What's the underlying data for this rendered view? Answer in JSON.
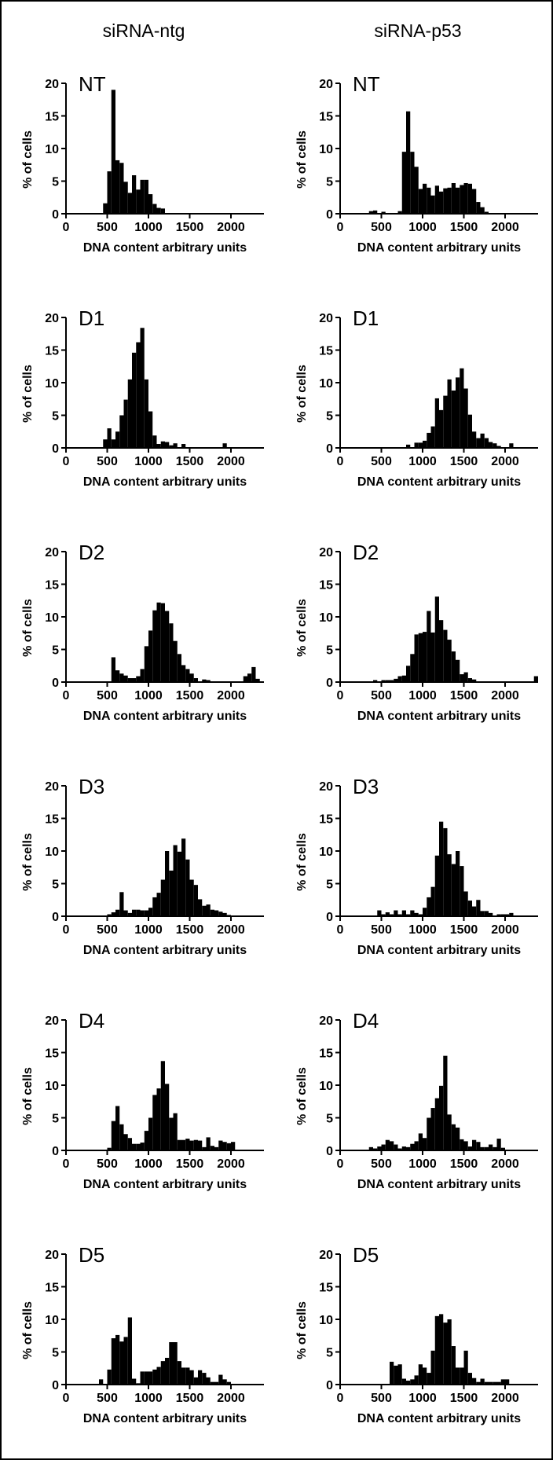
{
  "figure": {
    "column_titles": [
      "siRNA-ntg",
      "siRNA-p53"
    ],
    "row_labels": [
      "NT",
      "D1",
      "D2",
      "D3",
      "D4",
      "D5"
    ]
  },
  "axes": {
    "xlabel": "DNA content arbitrary units",
    "ylabel": "% of cells",
    "xlim": [
      0,
      2400
    ],
    "ylim": [
      0,
      20
    ],
    "xticks": [
      0,
      500,
      1000,
      1500,
      2000
    ],
    "yticks": [
      0,
      5,
      10,
      15,
      20
    ]
  },
  "chart_data": [
    {
      "type": "bar",
      "panel": "NT",
      "condition": "siRNA-ntg",
      "bin_width": 50,
      "bins": [
        [
          450,
          1.6
        ],
        [
          500,
          6.5
        ],
        [
          550,
          19.0
        ],
        [
          600,
          8.2
        ],
        [
          650,
          7.8
        ],
        [
          700,
          4.9
        ],
        [
          750,
          3.2
        ],
        [
          800,
          5.9
        ],
        [
          850,
          3.7
        ],
        [
          900,
          5.2
        ],
        [
          950,
          5.2
        ],
        [
          1000,
          3.0
        ],
        [
          1050,
          1.5
        ],
        [
          1100,
          0.9
        ],
        [
          1150,
          0.8
        ]
      ]
    },
    {
      "type": "bar",
      "panel": "NT",
      "condition": "siRNA-p53",
      "bin_width": 50,
      "bins": [
        [
          350,
          0.4
        ],
        [
          400,
          0.5
        ],
        [
          500,
          0.3
        ],
        [
          700,
          0.4
        ],
        [
          750,
          9.5
        ],
        [
          800,
          15.7
        ],
        [
          850,
          9.5
        ],
        [
          900,
          7.2
        ],
        [
          950,
          3.8
        ],
        [
          1000,
          4.6
        ],
        [
          1050,
          4.0
        ],
        [
          1100,
          2.8
        ],
        [
          1150,
          4.3
        ],
        [
          1200,
          3.4
        ],
        [
          1250,
          3.9
        ],
        [
          1300,
          4.0
        ],
        [
          1350,
          4.7
        ],
        [
          1400,
          4.0
        ],
        [
          1450,
          4.4
        ],
        [
          1500,
          4.7
        ],
        [
          1550,
          4.6
        ],
        [
          1600,
          3.8
        ],
        [
          1650,
          1.8
        ],
        [
          1700,
          1.0
        ],
        [
          1750,
          0.3
        ]
      ]
    },
    {
      "type": "bar",
      "panel": "D1",
      "condition": "siRNA-ntg",
      "bin_width": 50,
      "bins": [
        [
          450,
          1.3
        ],
        [
          500,
          3.0
        ],
        [
          550,
          1.3
        ],
        [
          600,
          2.5
        ],
        [
          650,
          5.0
        ],
        [
          700,
          7.4
        ],
        [
          750,
          10.5
        ],
        [
          800,
          14.6
        ],
        [
          850,
          16.2
        ],
        [
          900,
          18.4
        ],
        [
          950,
          10.5
        ],
        [
          1000,
          5.6
        ],
        [
          1050,
          1.9
        ],
        [
          1100,
          0.6
        ],
        [
          1150,
          1.0
        ],
        [
          1200,
          0.9
        ],
        [
          1250,
          0.4
        ],
        [
          1300,
          0.7
        ],
        [
          1400,
          0.6
        ],
        [
          1900,
          0.7
        ]
      ]
    },
    {
      "type": "bar",
      "panel": "D1",
      "condition": "siRNA-p53",
      "bin_width": 50,
      "bins": [
        [
          800,
          0.5
        ],
        [
          900,
          0.8
        ],
        [
          950,
          0.8
        ],
        [
          1000,
          1.1
        ],
        [
          1050,
          2.3
        ],
        [
          1100,
          3.3
        ],
        [
          1150,
          7.6
        ],
        [
          1200,
          5.8
        ],
        [
          1250,
          8.0
        ],
        [
          1300,
          10.5
        ],
        [
          1350,
          8.8
        ],
        [
          1400,
          10.8
        ],
        [
          1450,
          12.2
        ],
        [
          1500,
          9.1
        ],
        [
          1550,
          5.1
        ],
        [
          1600,
          2.5
        ],
        [
          1650,
          1.5
        ],
        [
          1700,
          2.2
        ],
        [
          1750,
          1.5
        ],
        [
          1800,
          0.9
        ],
        [
          1850,
          0.7
        ],
        [
          1900,
          0.3
        ],
        [
          2050,
          0.7
        ]
      ]
    },
    {
      "type": "bar",
      "panel": "D2",
      "condition": "siRNA-ntg",
      "bin_width": 50,
      "bins": [
        [
          550,
          3.8
        ],
        [
          600,
          1.8
        ],
        [
          650,
          1.3
        ],
        [
          700,
          1.0
        ],
        [
          750,
          0.6
        ],
        [
          800,
          0.6
        ],
        [
          850,
          0.9
        ],
        [
          900,
          2.0
        ],
        [
          950,
          5.5
        ],
        [
          1000,
          7.9
        ],
        [
          1050,
          11.0
        ],
        [
          1100,
          12.2
        ],
        [
          1150,
          12.1
        ],
        [
          1200,
          10.9
        ],
        [
          1250,
          9.0
        ],
        [
          1300,
          6.3
        ],
        [
          1350,
          4.3
        ],
        [
          1400,
          2.6
        ],
        [
          1450,
          2.0
        ],
        [
          1500,
          1.3
        ],
        [
          1550,
          0.6
        ],
        [
          1650,
          0.4
        ],
        [
          1700,
          0.3
        ],
        [
          2150,
          0.9
        ],
        [
          2200,
          1.3
        ],
        [
          2250,
          2.3
        ],
        [
          2300,
          0.5
        ]
      ]
    },
    {
      "type": "bar",
      "panel": "D2",
      "condition": "siRNA-p53",
      "bin_width": 50,
      "bins": [
        [
          400,
          0.3
        ],
        [
          500,
          0.3
        ],
        [
          550,
          0.3
        ],
        [
          600,
          0.3
        ],
        [
          650,
          0.5
        ],
        [
          700,
          0.9
        ],
        [
          750,
          1.0
        ],
        [
          800,
          2.5
        ],
        [
          850,
          4.3
        ],
        [
          900,
          7.3
        ],
        [
          950,
          7.5
        ],
        [
          1000,
          7.7
        ],
        [
          1050,
          10.9
        ],
        [
          1100,
          7.6
        ],
        [
          1150,
          13.1
        ],
        [
          1200,
          9.5
        ],
        [
          1250,
          8.0
        ],
        [
          1300,
          6.5
        ],
        [
          1350,
          4.7
        ],
        [
          1400,
          3.4
        ],
        [
          1450,
          1.2
        ],
        [
          1500,
          1.5
        ],
        [
          1550,
          0.6
        ],
        [
          1600,
          0.4
        ],
        [
          2350,
          0.9
        ]
      ]
    },
    {
      "type": "bar",
      "panel": "D3",
      "condition": "siRNA-ntg",
      "bin_width": 50,
      "bins": [
        [
          500,
          0.3
        ],
        [
          550,
          0.6
        ],
        [
          600,
          1.0
        ],
        [
          650,
          3.7
        ],
        [
          700,
          0.9
        ],
        [
          750,
          0.5
        ],
        [
          800,
          1.0
        ],
        [
          850,
          1.0
        ],
        [
          900,
          0.9
        ],
        [
          950,
          0.9
        ],
        [
          1000,
          1.3
        ],
        [
          1050,
          2.9
        ],
        [
          1100,
          3.6
        ],
        [
          1150,
          5.6
        ],
        [
          1200,
          10.0
        ],
        [
          1250,
          7.0
        ],
        [
          1300,
          10.9
        ],
        [
          1350,
          9.9
        ],
        [
          1400,
          11.9
        ],
        [
          1450,
          8.7
        ],
        [
          1500,
          5.6
        ],
        [
          1550,
          4.8
        ],
        [
          1600,
          2.6
        ],
        [
          1650,
          1.6
        ],
        [
          1700,
          1.8
        ],
        [
          1750,
          1.0
        ],
        [
          1800,
          0.9
        ],
        [
          1850,
          0.7
        ],
        [
          1900,
          0.5
        ],
        [
          1950,
          0.2
        ]
      ]
    },
    {
      "type": "bar",
      "panel": "D3",
      "condition": "siRNA-p53",
      "bin_width": 50,
      "bins": [
        [
          450,
          0.9
        ],
        [
          500,
          0.3
        ],
        [
          550,
          0.6
        ],
        [
          600,
          0.3
        ],
        [
          650,
          0.9
        ],
        [
          700,
          0.3
        ],
        [
          750,
          0.9
        ],
        [
          800,
          0.3
        ],
        [
          850,
          0.9
        ],
        [
          900,
          0.5
        ],
        [
          950,
          0.3
        ],
        [
          1000,
          1.3
        ],
        [
          1050,
          2.9
        ],
        [
          1100,
          4.5
        ],
        [
          1150,
          9.3
        ],
        [
          1200,
          14.5
        ],
        [
          1250,
          13.5
        ],
        [
          1300,
          9.5
        ],
        [
          1350,
          8.0
        ],
        [
          1400,
          10.0
        ],
        [
          1450,
          7.7
        ],
        [
          1500,
          3.8
        ],
        [
          1550,
          2.4
        ],
        [
          1600,
          1.5
        ],
        [
          1650,
          2.5
        ],
        [
          1700,
          0.8
        ],
        [
          1750,
          0.8
        ],
        [
          1800,
          0.5
        ],
        [
          1900,
          0.3
        ],
        [
          1950,
          0.3
        ],
        [
          2000,
          0.3
        ],
        [
          2050,
          0.5
        ]
      ]
    },
    {
      "type": "bar",
      "panel": "D4",
      "condition": "siRNA-ntg",
      "bin_width": 50,
      "bins": [
        [
          500,
          0.4
        ],
        [
          550,
          4.5
        ],
        [
          600,
          6.8
        ],
        [
          650,
          4.0
        ],
        [
          700,
          2.5
        ],
        [
          750,
          1.9
        ],
        [
          800,
          1.0
        ],
        [
          850,
          1.0
        ],
        [
          900,
          1.2
        ],
        [
          950,
          3.0
        ],
        [
          1000,
          5.0
        ],
        [
          1050,
          8.5
        ],
        [
          1100,
          9.5
        ],
        [
          1150,
          13.7
        ],
        [
          1200,
          10.2
        ],
        [
          1250,
          5.0
        ],
        [
          1300,
          5.7
        ],
        [
          1350,
          1.6
        ],
        [
          1400,
          1.6
        ],
        [
          1450,
          1.8
        ],
        [
          1500,
          1.5
        ],
        [
          1550,
          1.6
        ],
        [
          1600,
          1.5
        ],
        [
          1650,
          0.5
        ],
        [
          1700,
          2.0
        ],
        [
          1750,
          0.7
        ],
        [
          1800,
          0.5
        ],
        [
          1850,
          1.5
        ],
        [
          1900,
          1.3
        ],
        [
          1950,
          1.1
        ],
        [
          2000,
          1.3
        ]
      ]
    },
    {
      "type": "bar",
      "panel": "D4",
      "condition": "siRNA-p53",
      "bin_width": 50,
      "bins": [
        [
          350,
          0.5
        ],
        [
          400,
          0.3
        ],
        [
          450,
          0.6
        ],
        [
          500,
          0.9
        ],
        [
          550,
          1.6
        ],
        [
          600,
          1.4
        ],
        [
          650,
          0.9
        ],
        [
          700,
          0.3
        ],
        [
          750,
          0.6
        ],
        [
          800,
          0.5
        ],
        [
          850,
          1.0
        ],
        [
          900,
          1.4
        ],
        [
          950,
          2.6
        ],
        [
          1000,
          1.9
        ],
        [
          1050,
          5.0
        ],
        [
          1100,
          6.5
        ],
        [
          1150,
          8.0
        ],
        [
          1200,
          9.9
        ],
        [
          1250,
          14.5
        ],
        [
          1300,
          5.5
        ],
        [
          1350,
          4.0
        ],
        [
          1400,
          3.5
        ],
        [
          1450,
          1.7
        ],
        [
          1500,
          1.4
        ],
        [
          1550,
          0.6
        ],
        [
          1600,
          1.6
        ],
        [
          1650,
          1.3
        ],
        [
          1700,
          0.5
        ],
        [
          1750,
          0.5
        ],
        [
          1800,
          0.9
        ],
        [
          1850,
          0.5
        ],
        [
          1900,
          1.8
        ],
        [
          1950,
          0.4
        ]
      ]
    },
    {
      "type": "bar",
      "panel": "D5",
      "condition": "siRNA-ntg",
      "bin_width": 50,
      "bins": [
        [
          400,
          0.8
        ],
        [
          500,
          2.3
        ],
        [
          550,
          7.1
        ],
        [
          600,
          7.6
        ],
        [
          650,
          6.6
        ],
        [
          700,
          7.3
        ],
        [
          750,
          10.3
        ],
        [
          800,
          0.9
        ],
        [
          850,
          0.2
        ],
        [
          900,
          2.0
        ],
        [
          950,
          2.0
        ],
        [
          1000,
          2.0
        ],
        [
          1050,
          2.3
        ],
        [
          1100,
          2.7
        ],
        [
          1150,
          3.6
        ],
        [
          1200,
          4.1
        ],
        [
          1250,
          6.5
        ],
        [
          1300,
          6.5
        ],
        [
          1350,
          3.6
        ],
        [
          1400,
          2.6
        ],
        [
          1450,
          2.6
        ],
        [
          1500,
          2.2
        ],
        [
          1550,
          1.1
        ],
        [
          1600,
          2.2
        ],
        [
          1650,
          1.8
        ],
        [
          1700,
          1.1
        ],
        [
          1750,
          0.4
        ],
        [
          1800,
          0.4
        ],
        [
          1850,
          1.5
        ],
        [
          1900,
          0.8
        ],
        [
          1950,
          0.4
        ]
      ]
    },
    {
      "type": "bar",
      "panel": "D5",
      "condition": "siRNA-p53",
      "bin_width": 50,
      "bins": [
        [
          600,
          3.5
        ],
        [
          650,
          2.9
        ],
        [
          700,
          3.1
        ],
        [
          750,
          0.9
        ],
        [
          800,
          0.6
        ],
        [
          850,
          0.8
        ],
        [
          900,
          1.4
        ],
        [
          950,
          3.1
        ],
        [
          1000,
          2.6
        ],
        [
          1050,
          1.8
        ],
        [
          1100,
          5.2
        ],
        [
          1150,
          10.5
        ],
        [
          1200,
          10.8
        ],
        [
          1250,
          9.5
        ],
        [
          1300,
          10.0
        ],
        [
          1350,
          5.9
        ],
        [
          1400,
          2.6
        ],
        [
          1450,
          2.6
        ],
        [
          1500,
          5.2
        ],
        [
          1550,
          1.8
        ],
        [
          1600,
          1.0
        ],
        [
          1650,
          0.4
        ],
        [
          1700,
          0.9
        ],
        [
          1750,
          0.4
        ],
        [
          1800,
          0.4
        ],
        [
          1850,
          0.4
        ],
        [
          1900,
          0.4
        ],
        [
          1950,
          0.8
        ],
        [
          2000,
          0.8
        ]
      ]
    }
  ]
}
